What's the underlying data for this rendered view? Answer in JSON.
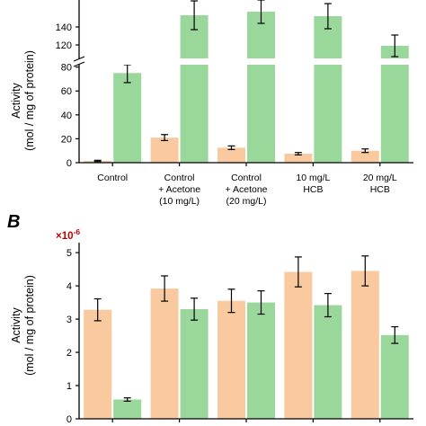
{
  "colors": {
    "orange": "#F9C9A0",
    "green": "#9AD79A",
    "axis": "#000000",
    "exponent": "#C00000"
  },
  "categories": [
    [
      "Control"
    ],
    [
      "Control",
      "+ Acetone",
      "(10 mg/L)"
    ],
    [
      "Control",
      "+ Acetone",
      "(20 mg/L)"
    ],
    [
      "10 mg/L",
      "HCB"
    ],
    [
      "20 mg/L",
      "HCB"
    ]
  ],
  "chart_data": [
    {
      "type": "bar",
      "ylabel": [
        "Activity",
        "(mol / mg of protein)"
      ],
      "axis_break": [
        82,
        105
      ],
      "ylim_lower": [
        0,
        82
      ],
      "ylim_upper": [
        105,
        170
      ],
      "yticks": [
        0,
        20,
        40,
        60,
        80,
        120,
        140
      ],
      "series": [
        {
          "color": "orange",
          "values": [
            1.5,
            21,
            12.5,
            7.5,
            10
          ],
          "errors": [
            0.5,
            2.5,
            1.5,
            1.0,
            1.5
          ]
        },
        {
          "color": "green",
          "values": [
            75,
            153,
            157,
            152,
            119
          ],
          "errors": [
            8,
            16,
            13,
            14,
            12
          ]
        }
      ]
    },
    {
      "panel_label": "B",
      "type": "bar",
      "ylabel": [
        "Activity",
        "(mol / mg of protein)"
      ],
      "exponent": "×10",
      "exponent_power": "-6",
      "ylim": [
        0,
        5.3
      ],
      "yticks": [
        0,
        1,
        2,
        3,
        4,
        5
      ],
      "series": [
        {
          "color": "orange",
          "values": [
            3.28,
            3.92,
            3.55,
            4.42,
            4.45
          ],
          "errors": [
            0.33,
            0.38,
            0.35,
            0.45,
            0.45
          ]
        },
        {
          "color": "green",
          "values": [
            0.58,
            3.3,
            3.5,
            3.42,
            2.52
          ],
          "errors": [
            0.05,
            0.33,
            0.35,
            0.35,
            0.25
          ]
        }
      ]
    }
  ]
}
